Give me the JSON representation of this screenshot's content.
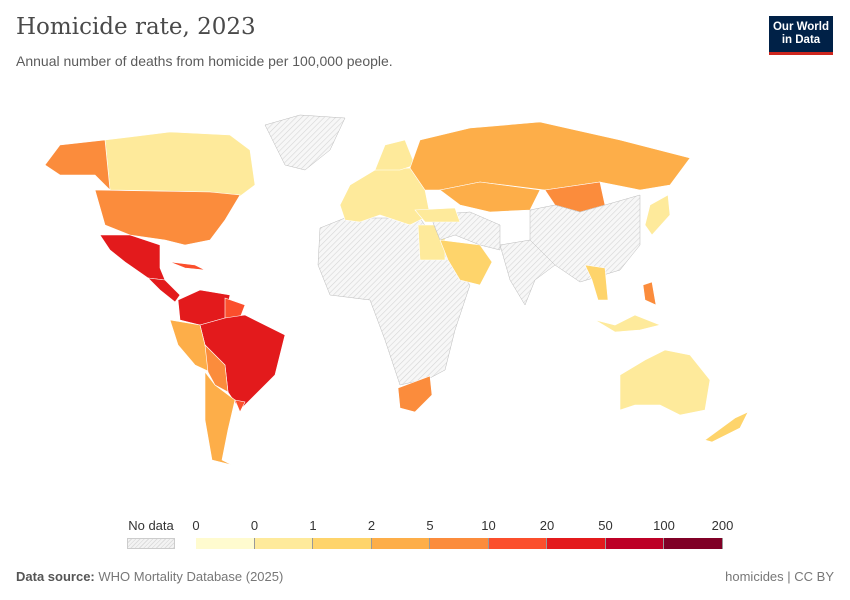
{
  "header": {
    "title": "Homicide rate, 2023",
    "subtitle": "Annual number of deaths from homicide per 100,000 people.",
    "logo_line1": "Our World",
    "logo_line2": "in Data"
  },
  "legend": {
    "no_data_label": "No data",
    "ticks": [
      "0",
      "0",
      "1",
      "2",
      "5",
      "10",
      "20",
      "50",
      "100",
      "200"
    ],
    "colors": [
      "#fffbcf",
      "#feea9b",
      "#fed46b",
      "#fdae49",
      "#fb8c3c",
      "#fb4f2c",
      "#e31a1c",
      "#bd0026",
      "#800026"
    ]
  },
  "regions": [
    {
      "id": "canada",
      "bin": 1
    },
    {
      "id": "alaska",
      "bin": 4
    },
    {
      "id": "greenland",
      "bin": -1
    },
    {
      "id": "usa",
      "bin": 4
    },
    {
      "id": "mexico",
      "bin": 6
    },
    {
      "id": "central-america",
      "bin": 6
    },
    {
      "id": "cuba",
      "bin": 5
    },
    {
      "id": "colombia-venezuela",
      "bin": 6
    },
    {
      "id": "guyana",
      "bin": 5
    },
    {
      "id": "brazil",
      "bin": 6
    },
    {
      "id": "peru",
      "bin": 3
    },
    {
      "id": "bolivia-paraguay",
      "bin": 4
    },
    {
      "id": "argentina-chile",
      "bin": 3
    },
    {
      "id": "uruguay",
      "bin": 5
    },
    {
      "id": "africa",
      "bin": -1
    },
    {
      "id": "egypt",
      "bin": 1
    },
    {
      "id": "south-africa",
      "bin": 4
    },
    {
      "id": "europe",
      "bin": 1
    },
    {
      "id": "scandinavia",
      "bin": 1
    },
    {
      "id": "russia",
      "bin": 3
    },
    {
      "id": "kazakhstan",
      "bin": 3
    },
    {
      "id": "mongolia",
      "bin": 4
    },
    {
      "id": "china",
      "bin": -1
    },
    {
      "id": "india",
      "bin": -1
    },
    {
      "id": "middle-east",
      "bin": -1
    },
    {
      "id": "saudi-arabia",
      "bin": 2
    },
    {
      "id": "turkey",
      "bin": 1
    },
    {
      "id": "thailand",
      "bin": 2
    },
    {
      "id": "philippines",
      "bin": 4
    },
    {
      "id": "japan",
      "bin": 1
    },
    {
      "id": "indonesia",
      "bin": 1
    },
    {
      "id": "australia",
      "bin": 1
    },
    {
      "id": "new-zealand",
      "bin": 2
    }
  ],
  "footer": {
    "source_label": "Data source:",
    "source": "WHO Mortality Database (2025)",
    "license": "homicides | CC BY"
  }
}
